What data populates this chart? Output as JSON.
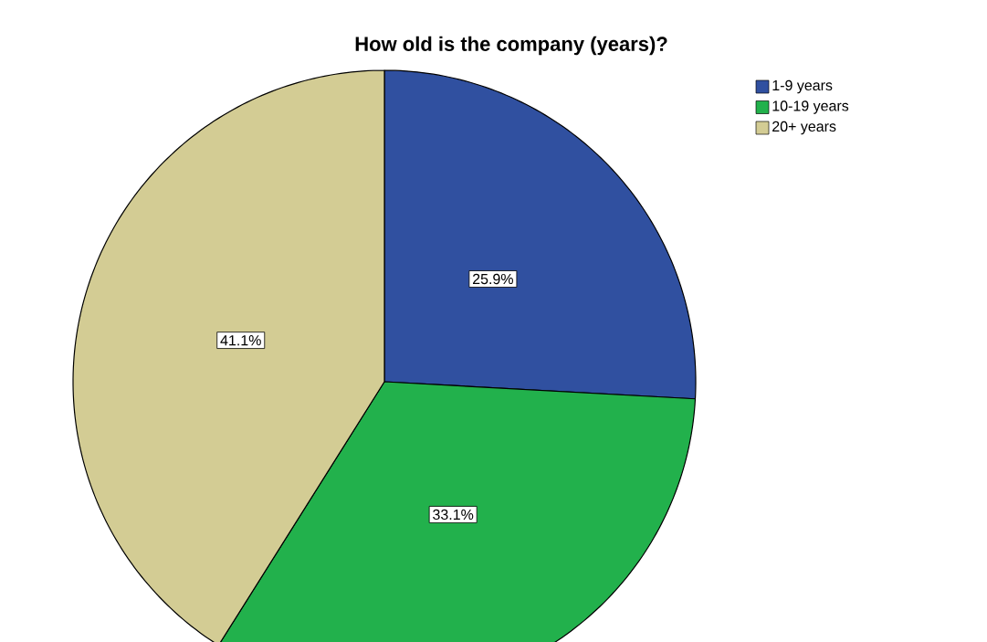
{
  "chart_data": {
    "type": "pie",
    "title": "How old is the company (years)?",
    "categories": [
      "1-9 years",
      "10-19 years",
      "20+ years"
    ],
    "values": [
      25.9,
      33.1,
      41.1
    ],
    "value_labels": [
      "25.9%",
      "33.1%",
      "41.1%"
    ],
    "colors": [
      "#3050a0",
      "#22b14c",
      "#d3cc94"
    ],
    "legend": "top right"
  }
}
